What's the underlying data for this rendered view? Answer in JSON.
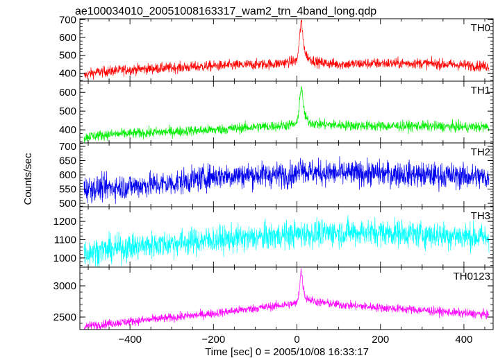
{
  "chart_data": {
    "type": "line",
    "title": "ae100034010_20051008163317_wam2_trn_4band_long.qdp",
    "xlabel": "Time [sec] 0 = 2005/10/08 16:33:17",
    "ylabel": "Counts/sec",
    "xlim": [
      -520,
      470
    ],
    "xticks": [
      -400,
      -200,
      0,
      200,
      400
    ],
    "grid": false,
    "panels": [
      {
        "name": "TH0",
        "color": "#ff0000",
        "ylim": [
          355,
          705
        ],
        "yticks": [
          400,
          500,
          600,
          700
        ],
        "x": [
          -510,
          -500,
          -480,
          -400,
          -300,
          -200,
          -100,
          -50,
          0,
          5,
          10,
          15,
          20,
          30,
          50,
          100,
          200,
          300,
          400,
          460
        ],
        "y": [
          385,
          395,
          405,
          420,
          430,
          440,
          448,
          452,
          470,
          560,
          700,
          590,
          510,
          480,
          460,
          450,
          455,
          455,
          445,
          438
        ],
        "noise": 30
      },
      {
        "name": "TH1",
        "color": "#00ee00",
        "ylim": [
          330,
          660
        ],
        "yticks": [
          400,
          500,
          600
        ],
        "x": [
          -510,
          -500,
          -450,
          -400,
          -300,
          -200,
          -100,
          -50,
          0,
          5,
          10,
          15,
          20,
          30,
          50,
          100,
          200,
          300,
          400,
          460
        ],
        "y": [
          355,
          365,
          375,
          380,
          390,
          400,
          415,
          420,
          430,
          520,
          640,
          540,
          470,
          440,
          430,
          425,
          420,
          420,
          415,
          415
        ],
        "noise": 28
      },
      {
        "name": "TH2",
        "color": "#0000ee",
        "ylim": [
          488,
          712
        ],
        "yticks": [
          500,
          550,
          600,
          650,
          700
        ],
        "x": [
          -510,
          -400,
          -300,
          -200,
          -100,
          0,
          10,
          20,
          100,
          200,
          300,
          400,
          460
        ],
        "y": [
          550,
          560,
          570,
          595,
          600,
          600,
          640,
          610,
          605,
          605,
          600,
          595,
          590
        ],
        "noise": 45
      },
      {
        "name": "TH3",
        "color": "#00ffff",
        "ylim": [
          950,
          1280
        ],
        "yticks": [
          1000,
          1100,
          1200
        ],
        "x": [
          -510,
          -400,
          -300,
          -200,
          -100,
          0,
          100,
          200,
          300,
          400,
          460
        ],
        "y": [
          1030,
          1060,
          1080,
          1100,
          1110,
          1130,
          1140,
          1140,
          1130,
          1120,
          1110
        ],
        "noise": 75
      },
      {
        "name": "TH0123",
        "color": "#ff00ff",
        "ylim": [
          2300,
          3300
        ],
        "yticks": [
          2500,
          3000
        ],
        "x": [
          -510,
          -500,
          -400,
          -300,
          -200,
          -100,
          -50,
          0,
          5,
          10,
          15,
          20,
          30,
          50,
          100,
          200,
          300,
          400,
          460
        ],
        "y": [
          2330,
          2360,
          2430,
          2490,
          2560,
          2640,
          2680,
          2720,
          2900,
          3270,
          2980,
          2820,
          2780,
          2740,
          2700,
          2650,
          2610,
          2560,
          2540
        ],
        "noise": 70
      }
    ]
  }
}
